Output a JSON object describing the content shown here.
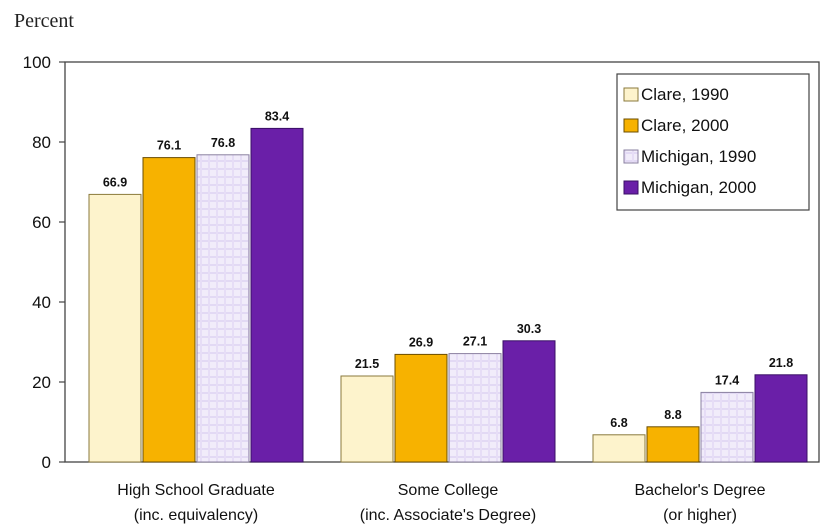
{
  "chart_data": {
    "type": "bar",
    "title": "",
    "ylabel": "Percent",
    "xlabel": "",
    "ylim": [
      0,
      100
    ],
    "yticks": [
      0,
      20,
      40,
      60,
      80,
      100
    ],
    "grid": false,
    "legend_position": "top-right",
    "categories": [
      [
        "High School Graduate",
        "(inc. equivalency)"
      ],
      [
        "Some College",
        "(inc. Associate's Degree)"
      ],
      [
        "Bachelor's Degree",
        "(or higher)"
      ]
    ],
    "series": [
      {
        "name": "Clare, 1990",
        "color": "#fdf3cc",
        "values": [
          66.9,
          21.5,
          6.8
        ]
      },
      {
        "name": "Clare, 2000",
        "color": "#f7b200",
        "values": [
          76.1,
          26.9,
          8.8
        ]
      },
      {
        "name": "Michigan, 1990",
        "color": "#eee8f8",
        "values": [
          76.8,
          27.1,
          17.4
        ]
      },
      {
        "name": "Michigan, 2000",
        "color": "#6a1fa8",
        "values": [
          83.4,
          30.3,
          21.8
        ]
      }
    ]
  }
}
